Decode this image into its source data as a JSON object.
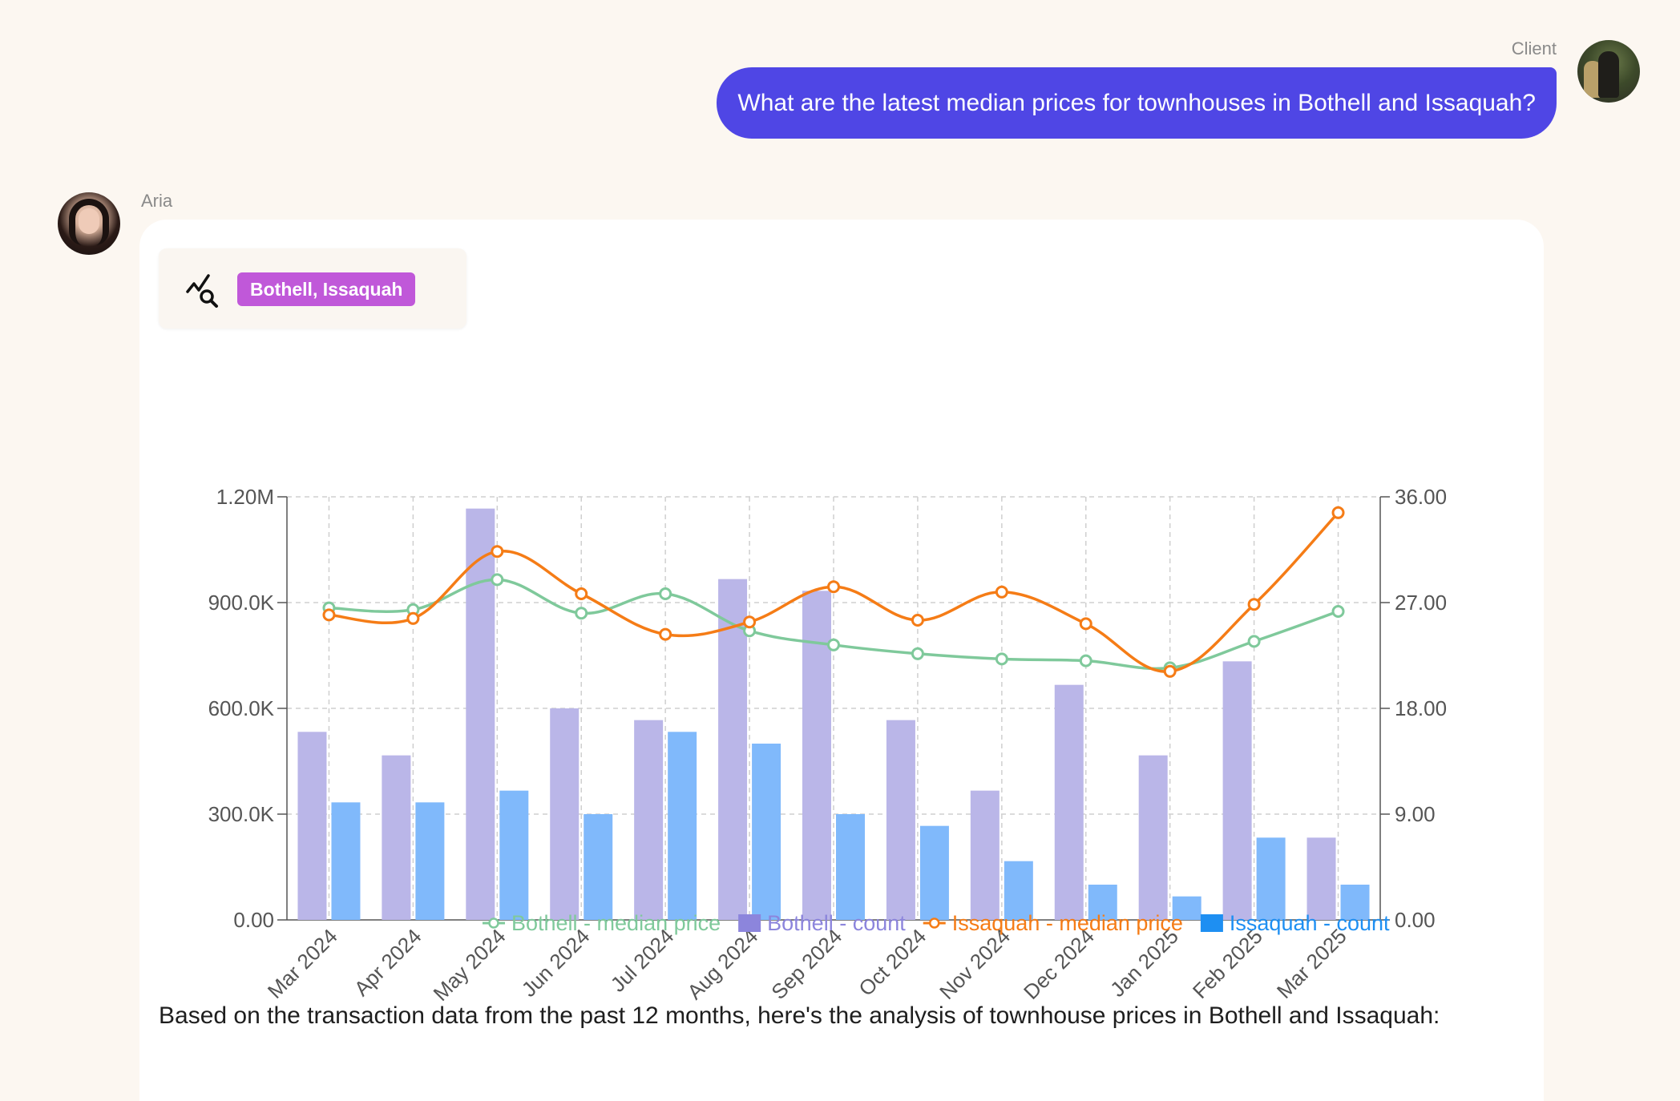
{
  "conversation": {
    "user": {
      "name": "Client",
      "message": "What are the latest median prices for townhouses in Bothell and Issaquah?"
    },
    "assistant": {
      "name": "Aria",
      "tag": "Bothell, Issaquah",
      "tag_icon": "chart-search-icon",
      "answer": "Based on the transaction data from the past 12 months, here's the analysis of townhouse prices in Bothell and Issaquah:"
    }
  },
  "chart_data": {
    "type": "bar",
    "categories": [
      "Mar 2024",
      "Apr 2024",
      "May 2024",
      "Jun 2024",
      "Jul 2024",
      "Aug 2024",
      "Sep 2024",
      "Oct 2024",
      "Nov 2024",
      "Dec 2024",
      "Jan 2025",
      "Feb 2025",
      "Mar 2025"
    ],
    "left_axis": {
      "min": 0,
      "max": 1200000,
      "ticks": [
        "0.00",
        "300.0K",
        "600.0K",
        "900.0K",
        "1.20M"
      ]
    },
    "right_axis": {
      "min": 0,
      "max": 36,
      "ticks": [
        "0.00",
        "9.00",
        "18.00",
        "27.00",
        "36.00"
      ]
    },
    "grid": true,
    "legend_placement": "bottom",
    "series": [
      {
        "name": "Bothell - median price",
        "kind": "line",
        "axis": "left",
        "color": "#7fc99b",
        "values": [
          885000,
          880000,
          965000,
          870000,
          925000,
          820000,
          780000,
          755000,
          740000,
          735000,
          715000,
          790000,
          875000
        ]
      },
      {
        "name": "Bothell - count",
        "kind": "bar",
        "axis": "right",
        "color": "#8c85dc",
        "values": [
          16,
          14,
          35,
          18,
          17,
          29,
          28,
          17,
          11,
          20,
          14,
          22,
          7
        ]
      },
      {
        "name": "Issaquah - median price",
        "kind": "line",
        "axis": "left",
        "color": "#f57c16",
        "values": [
          865000,
          855000,
          1045000,
          925000,
          810000,
          845000,
          945000,
          850000,
          930000,
          840000,
          705000,
          895000,
          1155000
        ]
      },
      {
        "name": "Issaquah - count",
        "kind": "bar",
        "axis": "right",
        "color": "#1e8ff2",
        "values": [
          10,
          10,
          11,
          9,
          16,
          15,
          9,
          8,
          5,
          3,
          2,
          7,
          3
        ]
      }
    ]
  }
}
